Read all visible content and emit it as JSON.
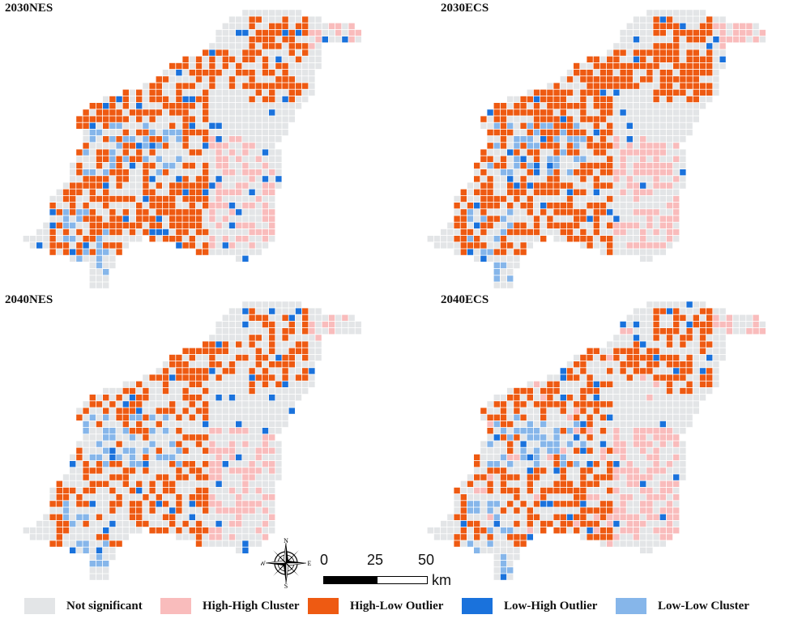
{
  "colors": {
    "not_significant": "#e3e5e7",
    "high_high": "#f9bcbc",
    "high_low": "#ee5a12",
    "low_high": "#1a72dc",
    "low_low": "#86b6ea"
  },
  "panels": [
    {
      "title": "2030NES",
      "variant": 0
    },
    {
      "title": "2030ECS",
      "variant": 1
    },
    {
      "title": "2040NES",
      "variant": 2
    },
    {
      "title": "2040ECS",
      "variant": 3
    }
  ],
  "compass": {
    "north": "N",
    "south": "S",
    "east": "E",
    "west": "W",
    "icon": "compass-rose-icon"
  },
  "scale": {
    "ticks": [
      "0",
      "25",
      "50"
    ],
    "unit": "km"
  },
  "legend": [
    {
      "label": "Not significant",
      "category": "not_significant"
    },
    {
      "label": "High-High Cluster",
      "category": "high_high"
    },
    {
      "label": "High-Low Outlier",
      "category": "high_low"
    },
    {
      "label": "Low-High Outlier",
      "category": "low_high"
    },
    {
      "label": "Low-Low Cluster",
      "category": "low_low"
    }
  ]
}
